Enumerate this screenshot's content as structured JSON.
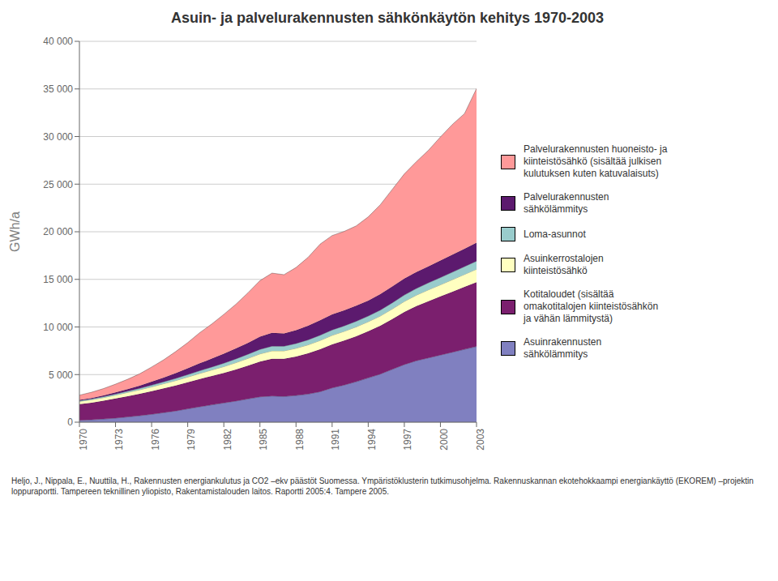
{
  "chart_data": {
    "type": "area",
    "stacked": true,
    "grid": true,
    "title": "Asuin- ja palvelurakennusten sähkönkäytön kehitys 1970-2003",
    "y_label": "GWh/a",
    "x": [
      1970,
      1971,
      1972,
      1973,
      1974,
      1975,
      1976,
      1977,
      1978,
      1979,
      1980,
      1981,
      1982,
      1983,
      1984,
      1985,
      1986,
      1987,
      1988,
      1989,
      1990,
      1991,
      1992,
      1993,
      1994,
      1995,
      1996,
      1997,
      1998,
      1999,
      2000,
      2001,
      2002,
      2003
    ],
    "xlim": [
      1970,
      2003
    ],
    "xticks": [
      1970,
      1973,
      1976,
      1979,
      1982,
      1985,
      1988,
      1991,
      1994,
      1997,
      2000,
      2003
    ],
    "ylim": [
      0,
      40000
    ],
    "yticks": [
      0,
      {
        "value": 5000,
        "label": "5 000"
      },
      {
        "value": 10000,
        "label": "10 000"
      },
      {
        "value": 15000,
        "label": "15 000"
      },
      {
        "value": 20000,
        "label": "20 000"
      },
      {
        "value": 25000,
        "label": "25 000"
      },
      {
        "value": 30000,
        "label": "30 000"
      },
      {
        "value": 35000,
        "label": "35 000"
      },
      {
        "value": 40000,
        "label": "40 000"
      }
    ],
    "series": [
      {
        "name": "Asuinrakennusten\nsähkölämmitys",
        "color": "#8080C0",
        "values": [
          200,
          250,
          330,
          430,
          550,
          680,
          830,
          1000,
          1180,
          1400,
          1620,
          1820,
          2020,
          2220,
          2440,
          2660,
          2750,
          2700,
          2800,
          2950,
          3200,
          3600,
          3900,
          4250,
          4650,
          5050,
          5550,
          6050,
          6450,
          6750,
          7050,
          7350,
          7650,
          7950
        ]
      },
      {
        "name": "Kotitaloudet (sisältää\nomakotitalojen kiinteistösähkön\nja vähän lämmitystä)",
        "color": "#7B1F6E",
        "values": [
          1700,
          1800,
          1920,
          2050,
          2180,
          2300,
          2430,
          2560,
          2680,
          2800,
          2920,
          3040,
          3160,
          3320,
          3500,
          3700,
          3900,
          3960,
          4100,
          4280,
          4460,
          4580,
          4680,
          4780,
          4900,
          5070,
          5270,
          5520,
          5740,
          5960,
          6160,
          6360,
          6560,
          6760
        ]
      },
      {
        "name": "Asuinkerrostalojen\nkiinteistösähkö",
        "color": "#FFFFC0",
        "values": [
          280,
          300,
          330,
          360,
          390,
          420,
          450,
          480,
          510,
          540,
          580,
          620,
          660,
          710,
          760,
          810,
          840,
          830,
          860,
          890,
          920,
          940,
          960,
          980,
          1000,
          1030,
          1070,
          1110,
          1150,
          1190,
          1220,
          1260,
          1310,
          1360
        ]
      },
      {
        "name": "Loma-asunnot",
        "color": "#99CCCC",
        "values": [
          80,
          90,
          100,
          115,
          135,
          155,
          175,
          200,
          225,
          255,
          285,
          315,
          355,
          395,
          435,
          475,
          495,
          485,
          505,
          525,
          550,
          565,
          575,
          585,
          595,
          615,
          645,
          675,
          705,
          735,
          760,
          790,
          820,
          850
        ]
      },
      {
        "name": "Palvelurakennusten\nsähkölämmitys",
        "color": "#5C1A6E",
        "values": [
          80,
          100,
          130,
          170,
          220,
          280,
          360,
          450,
          550,
          660,
          780,
          880,
          990,
          1090,
          1190,
          1340,
          1390,
          1340,
          1390,
          1480,
          1580,
          1630,
          1630,
          1630,
          1630,
          1680,
          1730,
          1730,
          1730,
          1730,
          1780,
          1830,
          1880,
          1930
        ]
      },
      {
        "name": "Palvelurakennusten huoneisto- ja\nkiinteistösähkö (sisältää julkisen\nkulutuksen kuten katuvalaisuts)",
        "color": "#FF9999",
        "values": [
          500,
          600,
          720,
          870,
          1030,
          1240,
          1550,
          1860,
          2270,
          2700,
          3220,
          3640,
          4140,
          4650,
          5260,
          5880,
          6280,
          6180,
          6590,
          7190,
          7990,
          8290,
          8290,
          8390,
          8790,
          9390,
          10190,
          10990,
          11590,
          12190,
          12990,
          13690,
          14190,
          16190
        ]
      }
    ],
    "annotations": [
      "Heljo, J., Nippala, E., Nuuttila, H., Rakennusten energiankulutus ja CO2 –ekv päästöt Suomessa. Ympäristöklusterin tutkimusohjelma. Rakennuskannan ekotehokkaampi energiankäyttö (EKOREM) –projektin loppuraportti. Tampereen teknillinen yliopisto, Rakentamistalouden laitos. Raportti 2005:4. Tampere 2005."
    ]
  }
}
